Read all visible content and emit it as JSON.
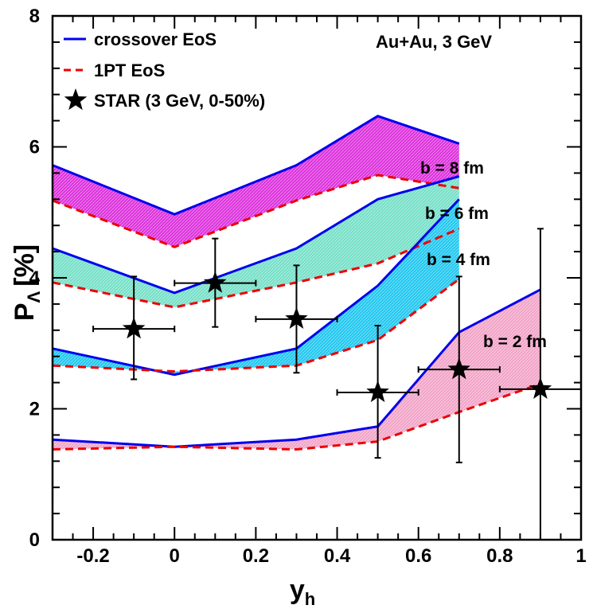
{
  "chart_data": {
    "type": "line",
    "xlabel": "y",
    "xlabel_sub": "h",
    "ylabel": "P",
    "ylabel_sub": "Λ",
    "ylabel_unit": "[%]",
    "xlim": [
      -0.3,
      1.0
    ],
    "ylim": [
      0,
      8
    ],
    "x_major_ticks": [
      -0.2,
      0,
      0.2,
      0.4,
      0.6,
      0.8,
      1
    ],
    "x_tick_labels": [
      "-0.2",
      "0",
      "0.2",
      "0.4",
      "0.6",
      "0.8",
      "1"
    ],
    "y_major_ticks": [
      0,
      2,
      4,
      6,
      8
    ],
    "y_tick_labels": [
      "0",
      "2",
      "4",
      "6",
      "8"
    ],
    "annotation": "Au+Au, 3 GeV",
    "legend": {
      "placement": "top-left",
      "entries": [
        {
          "label": "crossover EoS",
          "style": "solid",
          "color": "#0000ee"
        },
        {
          "label": "1PT EoS",
          "style": "dashed",
          "color": "#ee0000"
        },
        {
          "label": "STAR (3 GeV, 0-50%)",
          "style": "star",
          "color": "#000000"
        }
      ]
    },
    "bands": [
      {
        "label": "b = 8 fm",
        "fill": "#dd33dd",
        "x": [
          -0.3,
          0,
          0.3,
          0.5,
          0.7
        ],
        "crossover": [
          5.72,
          4.97,
          5.72,
          6.47,
          6.05
        ],
        "onept": [
          5.18,
          4.47,
          5.18,
          5.57,
          5.37
        ]
      },
      {
        "label": "b = 6 fm",
        "fill": "#77e0c8",
        "x": [
          -0.3,
          0,
          0.3,
          0.5,
          0.7
        ],
        "crossover": [
          4.45,
          3.77,
          4.45,
          5.2,
          5.55
        ],
        "onept": [
          3.93,
          3.55,
          3.93,
          4.22,
          4.75
        ]
      },
      {
        "label": "b = 4 fm",
        "fill": "#22c8f0",
        "x": [
          -0.3,
          0,
          0.3,
          0.5,
          0.7
        ],
        "crossover": [
          2.92,
          2.52,
          2.92,
          3.88,
          5.2
        ],
        "onept": [
          2.66,
          2.57,
          2.66,
          3.05,
          3.98
        ]
      },
      {
        "label": "b = 2 fm",
        "fill": "#f2a5c8",
        "x": [
          -0.3,
          0,
          0.3,
          0.5,
          0.7,
          0.9
        ],
        "crossover": [
          1.53,
          1.42,
          1.53,
          1.73,
          3.17,
          3.82
        ],
        "onept": [
          1.38,
          1.42,
          1.38,
          1.5,
          1.95,
          2.38
        ]
      }
    ],
    "star_data": [
      {
        "x": -0.1,
        "y": 3.22,
        "xerr": 0.1,
        "yerr_low": 0.77,
        "yerr_high": 0.8
      },
      {
        "x": 0.1,
        "y": 3.92,
        "xerr": 0.1,
        "yerr_low": 0.67,
        "yerr_high": 0.68
      },
      {
        "x": 0.3,
        "y": 3.37,
        "xerr": 0.1,
        "yerr_low": 0.82,
        "yerr_high": 0.82
      },
      {
        "x": 0.5,
        "y": 2.25,
        "xerr": 0.1,
        "yerr_low": 1.0,
        "yerr_high": 1.02
      },
      {
        "x": 0.7,
        "y": 2.6,
        "xerr": 0.1,
        "yerr_low": 1.42,
        "yerr_high": 1.42
      },
      {
        "x": 0.9,
        "y": 2.3,
        "xerr": 0.1,
        "yerr_low": 2.3,
        "yerr_high": 2.45
      }
    ]
  }
}
